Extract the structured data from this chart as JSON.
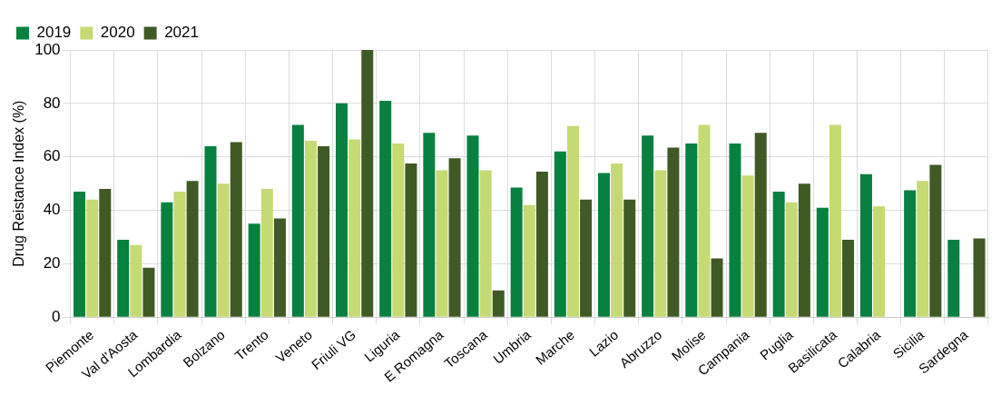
{
  "chart_data": {
    "type": "bar",
    "ylabel": "Drug Reistance Index (%)",
    "categories": [
      "Piemonte",
      "Val d'Aosta",
      "Lombardia",
      "Bolzano",
      "Trento",
      "Veneto",
      "Friuli VG",
      "Liguria",
      "E Romagna",
      "Toscana",
      "Umbria",
      "Marche",
      "Lazio",
      "Abruzzo",
      "Molise",
      "Campania",
      "Puglia",
      "Basilicata",
      "Calabria",
      "Sicilia",
      "Sardegna"
    ],
    "series": [
      {
        "name": "2019",
        "color": "#078040",
        "values": [
          47,
          29,
          43,
          64,
          35,
          72,
          80,
          81,
          69,
          68,
          48.5,
          62,
          54,
          68,
          65,
          65,
          47,
          41,
          53.5,
          47.5,
          29
        ]
      },
      {
        "name": "2020",
        "color": "#c5da73",
        "values": [
          44,
          27,
          47,
          50,
          48,
          66,
          66.5,
          65,
          55,
          55,
          42,
          71.5,
          57.5,
          55,
          72,
          53,
          43,
          72,
          41.5,
          51,
          null
        ]
      },
      {
        "name": "2021",
        "color": "#405a25",
        "values": [
          48,
          18.5,
          51,
          65.5,
          37,
          64,
          100,
          57.5,
          59.5,
          10,
          54.5,
          44,
          44,
          63.5,
          22,
          69,
          50,
          29,
          null,
          57,
          29.5
        ]
      }
    ],
    "ylim": [
      0,
      100
    ],
    "yticks": [
      0,
      20,
      40,
      60,
      80,
      100
    ],
    "grid": true,
    "legend": "top left"
  }
}
